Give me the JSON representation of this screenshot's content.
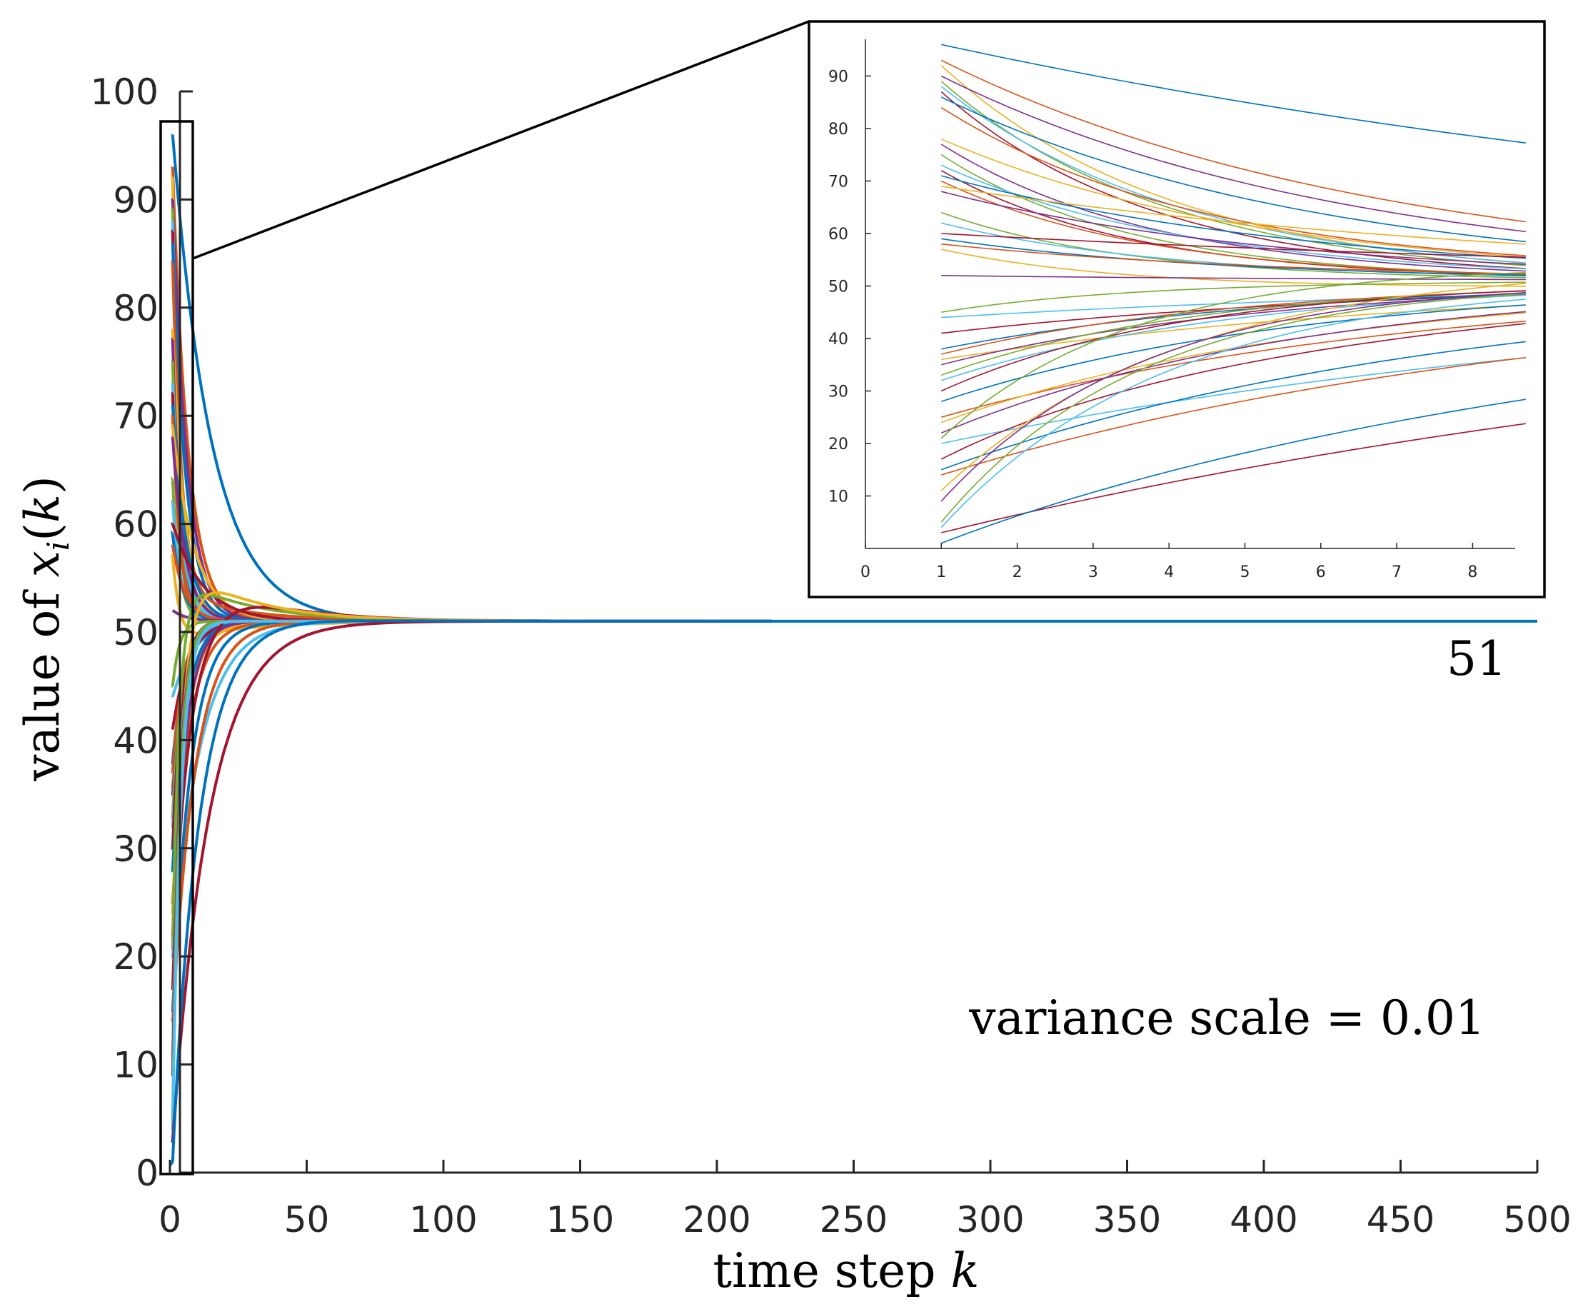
{
  "chart_data": [
    {
      "type": "line",
      "role": "main",
      "xlabel_text": "time step ",
      "xlabel_var": "k",
      "ylabel_text": "value of ",
      "ylabel_var": "x",
      "ylabel_sub": "i",
      "ylabel_arg_open": "(",
      "ylabel_arg": "k",
      "ylabel_arg_close": ")",
      "xlim": [
        0,
        500
      ],
      "ylim": [
        0,
        100
      ],
      "xticks": [
        0,
        50,
        100,
        150,
        200,
        250,
        300,
        350,
        400,
        450,
        500
      ],
      "yticks": [
        0,
        10,
        20,
        30,
        40,
        50,
        60,
        70,
        80,
        90,
        100
      ],
      "consensus_value": 51,
      "consensus_label": "51",
      "annotation": "variance scale = 0.01",
      "zoom_box": {
        "x_range": [
          -4,
          8
        ],
        "y_range": [
          0,
          97
        ]
      },
      "num_agents": 50,
      "series_initial_values": [
        96,
        93,
        92,
        90,
        89,
        88,
        87,
        86,
        84,
        78,
        77,
        75,
        73,
        72,
        71,
        70,
        69,
        68,
        64,
        62,
        60,
        59,
        58,
        57,
        52,
        45,
        44,
        41,
        38,
        37,
        36,
        35,
        33,
        32,
        30,
        28,
        25,
        24,
        22,
        21,
        20,
        17,
        15,
        14,
        11,
        9,
        5,
        4,
        3,
        1
      ]
    },
    {
      "type": "line",
      "role": "inset-zoom",
      "xlim": [
        0,
        8.7
      ],
      "ylim": [
        0,
        97
      ],
      "xticks": [
        0,
        1,
        2,
        3,
        4,
        5,
        6,
        7,
        8
      ],
      "yticks": [
        10,
        20,
        30,
        40,
        50,
        60,
        70,
        80,
        90
      ]
    }
  ],
  "colors": [
    "#0072BD",
    "#D95319",
    "#EDB120",
    "#7E2F8E",
    "#77AC30",
    "#4DBEEE",
    "#A2142F"
  ],
  "consensus_color": "#0072BD"
}
